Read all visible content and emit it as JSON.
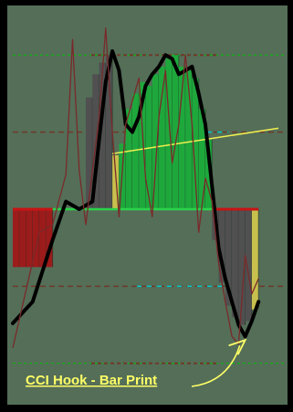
{
  "colors": {
    "frame": "#000000",
    "background": "#546e58",
    "cci_line": "#000000",
    "turbo_line": "#7a2a2a",
    "bar_red": "#9c1b1b",
    "bar_green": "#1ea83c",
    "bar_gray": "#505050",
    "bar_yellow": "#c8c04e",
    "zero_line_green": "#2bd34a",
    "zero_line_red": "#c81414",
    "level_100": "#6e3a2a",
    "level_200": "#00c000",
    "dash_accent": "#00c8c8",
    "trendline": "#f0f050",
    "annotation": "#ffff66"
  },
  "chart_data": {
    "type": "line",
    "title": "",
    "xlabel": "",
    "ylabel": "",
    "ylim": [
      -250,
      250
    ],
    "xlim": [
      0,
      40
    ],
    "grid": false,
    "reference_levels": [
      200,
      100,
      0,
      -100,
      -200
    ],
    "series": [
      {
        "kind": "cci",
        "points": [
          [
            0,
            -148
          ],
          [
            3,
            -120
          ],
          [
            6,
            -40
          ],
          [
            8,
            10
          ],
          [
            10,
            0
          ],
          [
            12,
            10
          ],
          [
            13,
            90
          ],
          [
            14,
            165
          ],
          [
            15,
            205
          ],
          [
            16,
            180
          ],
          [
            17,
            110
          ],
          [
            18,
            100
          ],
          [
            19,
            120
          ],
          [
            20,
            160
          ],
          [
            21,
            175
          ],
          [
            22,
            185
          ],
          [
            23,
            200
          ],
          [
            24,
            195
          ],
          [
            25,
            175
          ],
          [
            26,
            180
          ],
          [
            27,
            185
          ],
          [
            28,
            150
          ],
          [
            29,
            110
          ],
          [
            30,
            30
          ],
          [
            31,
            -50
          ],
          [
            32,
            -90
          ],
          [
            33,
            -120
          ],
          [
            34,
            -150
          ],
          [
            35,
            -165
          ],
          [
            36,
            -145
          ],
          [
            37,
            -120
          ]
        ]
      },
      {
        "kind": "turbo",
        "points": [
          [
            0,
            -180
          ],
          [
            4,
            -30
          ],
          [
            6,
            -20
          ],
          [
            8,
            45
          ],
          [
            9,
            220
          ],
          [
            10,
            50
          ],
          [
            11,
            -20
          ],
          [
            13,
            120
          ],
          [
            14,
            235
          ],
          [
            15,
            100
          ],
          [
            16,
            -10
          ],
          [
            17,
            110
          ],
          [
            19,
            170
          ],
          [
            20,
            40
          ],
          [
            21,
            -10
          ],
          [
            22,
            120
          ],
          [
            23,
            180
          ],
          [
            24,
            60
          ],
          [
            25,
            110
          ],
          [
            26,
            200
          ],
          [
            27,
            110
          ],
          [
            28,
            -30
          ],
          [
            29,
            40
          ],
          [
            30,
            10
          ],
          [
            31,
            -70
          ],
          [
            32,
            -120
          ],
          [
            33,
            -165
          ],
          [
            34,
            -175
          ],
          [
            35,
            -60
          ],
          [
            36,
            -110
          ],
          [
            37,
            -90
          ]
        ]
      }
    ],
    "histogram": [
      {
        "x": 0,
        "value": -75,
        "color": "red"
      },
      {
        "x": 1,
        "value": -75,
        "color": "red"
      },
      {
        "x": 2,
        "value": -75,
        "color": "red"
      },
      {
        "x": 3,
        "value": -75,
        "color": "red"
      },
      {
        "x": 4,
        "value": -75,
        "color": "red"
      },
      {
        "x": 5,
        "value": -75,
        "color": "red"
      },
      {
        "x": 11,
        "value": 145,
        "color": "gray"
      },
      {
        "x": 12,
        "value": 175,
        "color": "gray"
      },
      {
        "x": 13,
        "value": 190,
        "color": "gray"
      },
      {
        "x": 14,
        "value": 200,
        "color": "gray"
      },
      {
        "x": 15,
        "value": 70,
        "color": "yellow"
      },
      {
        "x": 16,
        "value": 85,
        "color": "green"
      },
      {
        "x": 17,
        "value": 130,
        "color": "green"
      },
      {
        "x": 18,
        "value": 150,
        "color": "green"
      },
      {
        "x": 19,
        "value": 165,
        "color": "green"
      },
      {
        "x": 20,
        "value": 160,
        "color": "green"
      },
      {
        "x": 21,
        "value": 175,
        "color": "green"
      },
      {
        "x": 22,
        "value": 185,
        "color": "green"
      },
      {
        "x": 23,
        "value": 195,
        "color": "green"
      },
      {
        "x": 24,
        "value": 200,
        "color": "green"
      },
      {
        "x": 25,
        "value": 185,
        "color": "green"
      },
      {
        "x": 26,
        "value": 180,
        "color": "green"
      },
      {
        "x": 27,
        "value": 170,
        "color": "green"
      },
      {
        "x": 28,
        "value": 130,
        "color": "green"
      },
      {
        "x": 29,
        "value": 90,
        "color": "green"
      },
      {
        "x": 30,
        "value": -40,
        "color": "gray"
      },
      {
        "x": 31,
        "value": -95,
        "color": "gray"
      },
      {
        "x": 32,
        "value": -125,
        "color": "gray"
      },
      {
        "x": 33,
        "value": -140,
        "color": "gray"
      },
      {
        "x": 34,
        "value": -150,
        "color": "gray"
      },
      {
        "x": 35,
        "value": -145,
        "color": "gray"
      },
      {
        "x": 36,
        "value": -130,
        "color": "yellow"
      }
    ],
    "trendline": {
      "from": [
        15,
        72
      ],
      "to": [
        40,
        105
      ]
    },
    "annotation": {
      "text": "CCI Hook - Bar Print",
      "arrow_target": [
        35,
        -165
      ]
    }
  }
}
